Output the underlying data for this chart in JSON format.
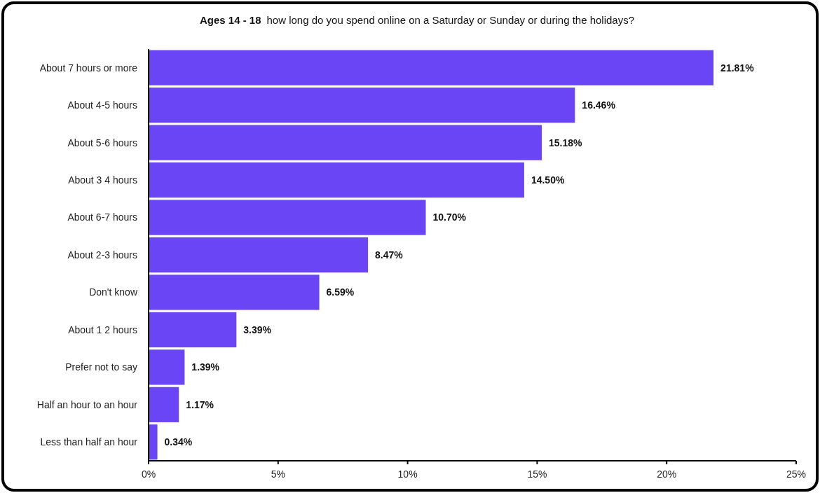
{
  "chart_data": {
    "type": "bar",
    "orientation": "horizontal",
    "title": "Ages 14 - 18",
    "subtitle": "how long do you spend online on a Saturday or Sunday or during the holidays?",
    "categories": [
      "About 7 hours or more",
      "About 4-5 hours",
      "About 5-6 hours",
      "About 3 4 hours",
      "About 6-7 hours",
      "About 2-3 hours",
      "Don't know",
      "About 1 2 hours",
      "Prefer not to say",
      "Half an hour to an hour",
      "Less than half an hour"
    ],
    "values": [
      21.81,
      16.46,
      15.18,
      14.5,
      10.7,
      8.47,
      6.59,
      3.39,
      1.39,
      1.17,
      0.34
    ],
    "value_labels": [
      "21.81%",
      "16.46%",
      "15.18%",
      "14.50%",
      "10.70%",
      "8.47%",
      "6.59%",
      "3.39%",
      "1.39%",
      "1.17%",
      "0.34%"
    ],
    "color": "#6a45f6",
    "xlim": [
      0,
      25
    ],
    "xticks": [
      {
        "value": 0,
        "label": "0%"
      },
      {
        "value": 5,
        "label": "5%"
      },
      {
        "value": 10,
        "label": "10%"
      },
      {
        "value": 15,
        "label": "15%"
      },
      {
        "value": 20,
        "label": "20%"
      },
      {
        "value": 25,
        "label": "25%"
      }
    ],
    "grid": false
  }
}
